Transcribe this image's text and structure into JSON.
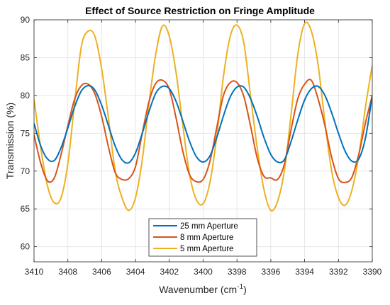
{
  "chart_data": {
    "type": "line",
    "title": "Effect of Source Restriction on Fringe Amplitude",
    "xlabel": "Wavenumber (cm",
    "xlabel_sup": "-1",
    "xlabel_end": ")",
    "ylabel": "Transmission (%)",
    "xlim": [
      3410,
      3390
    ],
    "ylim": [
      58,
      90
    ],
    "x_reversed": true,
    "xticks": [
      3410,
      3408,
      3406,
      3404,
      3402,
      3400,
      3398,
      3396,
      3394,
      3392,
      3390
    ],
    "yticks": [
      60,
      65,
      70,
      75,
      80,
      85,
      90
    ],
    "grid": true,
    "legend_position": "bottom-center",
    "series": [
      {
        "name": "25 mm Aperture",
        "color": "#0072BD",
        "x": [
          3410,
          3409.6,
          3409.2,
          3408.8,
          3408.4,
          3408,
          3407.6,
          3407.2,
          3406.8,
          3406.4,
          3406,
          3405.6,
          3405.2,
          3404.8,
          3404.4,
          3404,
          3403.6,
          3403.2,
          3402.8,
          3402.4,
          3402,
          3401.6,
          3401.2,
          3400.8,
          3400.4,
          3400,
          3399.6,
          3399.2,
          3398.8,
          3398.4,
          3398,
          3397.6,
          3397.2,
          3396.8,
          3396.4,
          3396,
          3395.6,
          3395.2,
          3394.8,
          3394.4,
          3394,
          3393.6,
          3393.2,
          3392.8,
          3392.4,
          3392,
          3391.6,
          3391.2,
          3390.8,
          3390.4,
          3390
        ],
        "y": [
          76.3,
          73.3,
          71.6,
          71.4,
          73.1,
          75.7,
          78.5,
          80.6,
          81.3,
          80.7,
          78.7,
          76.0,
          73.3,
          71.5,
          71.1,
          72.4,
          75.0,
          77.9,
          80.3,
          81.2,
          80.9,
          79.2,
          76.6,
          73.9,
          71.9,
          71.2,
          72.0,
          74.4,
          77.3,
          79.8,
          81.1,
          81.1,
          79.6,
          77.2,
          74.4,
          72.2,
          71.2,
          71.5,
          73.9,
          76.8,
          79.4,
          80.9,
          81.2,
          80.0,
          77.7,
          75.0,
          72.6,
          71.3,
          71.6,
          74.4,
          80.0
        ]
      },
      {
        "name": "8 mm Aperture",
        "color": "#D95319",
        "x": [
          3410,
          3409.6,
          3409.2,
          3408.8,
          3408.4,
          3408,
          3407.6,
          3407.2,
          3406.8,
          3406.4,
          3406,
          3405.6,
          3405.2,
          3404.8,
          3404.4,
          3404,
          3403.6,
          3403.2,
          3402.8,
          3402.4,
          3402,
          3401.6,
          3401.2,
          3400.8,
          3400.4,
          3400,
          3399.6,
          3399.2,
          3398.8,
          3398.4,
          3398,
          3397.6,
          3397.2,
          3396.8,
          3396.4,
          3396,
          3395.6,
          3395.2,
          3394.8,
          3394.4,
          3394,
          3393.6,
          3393.2,
          3392.8,
          3392.4,
          3392,
          3391.6,
          3391.2,
          3390.8,
          3390.4,
          3390
        ],
        "y": [
          74.8,
          71.0,
          68.7,
          69.1,
          72.2,
          76.0,
          79.5,
          81.3,
          81.5,
          80.2,
          77.2,
          73.2,
          69.8,
          68.9,
          69.0,
          70.6,
          75.0,
          79.2,
          81.6,
          82.0,
          80.8,
          77.0,
          72.6,
          69.5,
          68.6,
          68.9,
          71.3,
          75.7,
          80.0,
          81.7,
          81.7,
          79.9,
          76.0,
          71.7,
          69.3,
          69.1,
          68.9,
          70.9,
          75.5,
          79.6,
          81.5,
          82.0,
          79.5,
          76.0,
          71.8,
          69.0,
          68.5,
          69.2,
          72.2,
          76.4,
          80.0
        ]
      },
      {
        "name": "5 mm Aperture",
        "color": "#EDB120",
        "x": [
          3410,
          3409.6,
          3409.2,
          3408.8,
          3408.4,
          3408,
          3407.6,
          3407.2,
          3406.8,
          3406.4,
          3406,
          3405.6,
          3405.2,
          3404.8,
          3404.4,
          3404,
          3403.6,
          3403.2,
          3402.8,
          3402.4,
          3402,
          3401.6,
          3401.2,
          3400.8,
          3400.4,
          3400,
          3399.6,
          3399.2,
          3398.8,
          3398.4,
          3398,
          3397.6,
          3397.2,
          3396.8,
          3396.4,
          3396,
          3395.6,
          3395.2,
          3394.8,
          3394.4,
          3394,
          3393.6,
          3393.2,
          3392.8,
          3392.4,
          3392,
          3391.6,
          3391.2,
          3390.8,
          3390.4,
          3390
        ],
        "y": [
          79.5,
          73.0,
          68.0,
          65.8,
          66.5,
          71.0,
          79.0,
          86.5,
          88.5,
          87.8,
          83.5,
          77.0,
          70.0,
          66.5,
          64.8,
          66.5,
          71.5,
          79.0,
          85.5,
          89.2,
          87.8,
          83.0,
          76.0,
          69.5,
          66.2,
          65.7,
          68.5,
          74.5,
          82.5,
          87.8,
          89.3,
          87.0,
          80.0,
          73.0,
          67.5,
          64.8,
          66.0,
          70.0,
          77.5,
          85.5,
          89.5,
          88.5,
          84.0,
          76.5,
          70.0,
          66.5,
          65.5,
          67.5,
          72.0,
          78.5,
          84.0
        ]
      }
    ]
  }
}
